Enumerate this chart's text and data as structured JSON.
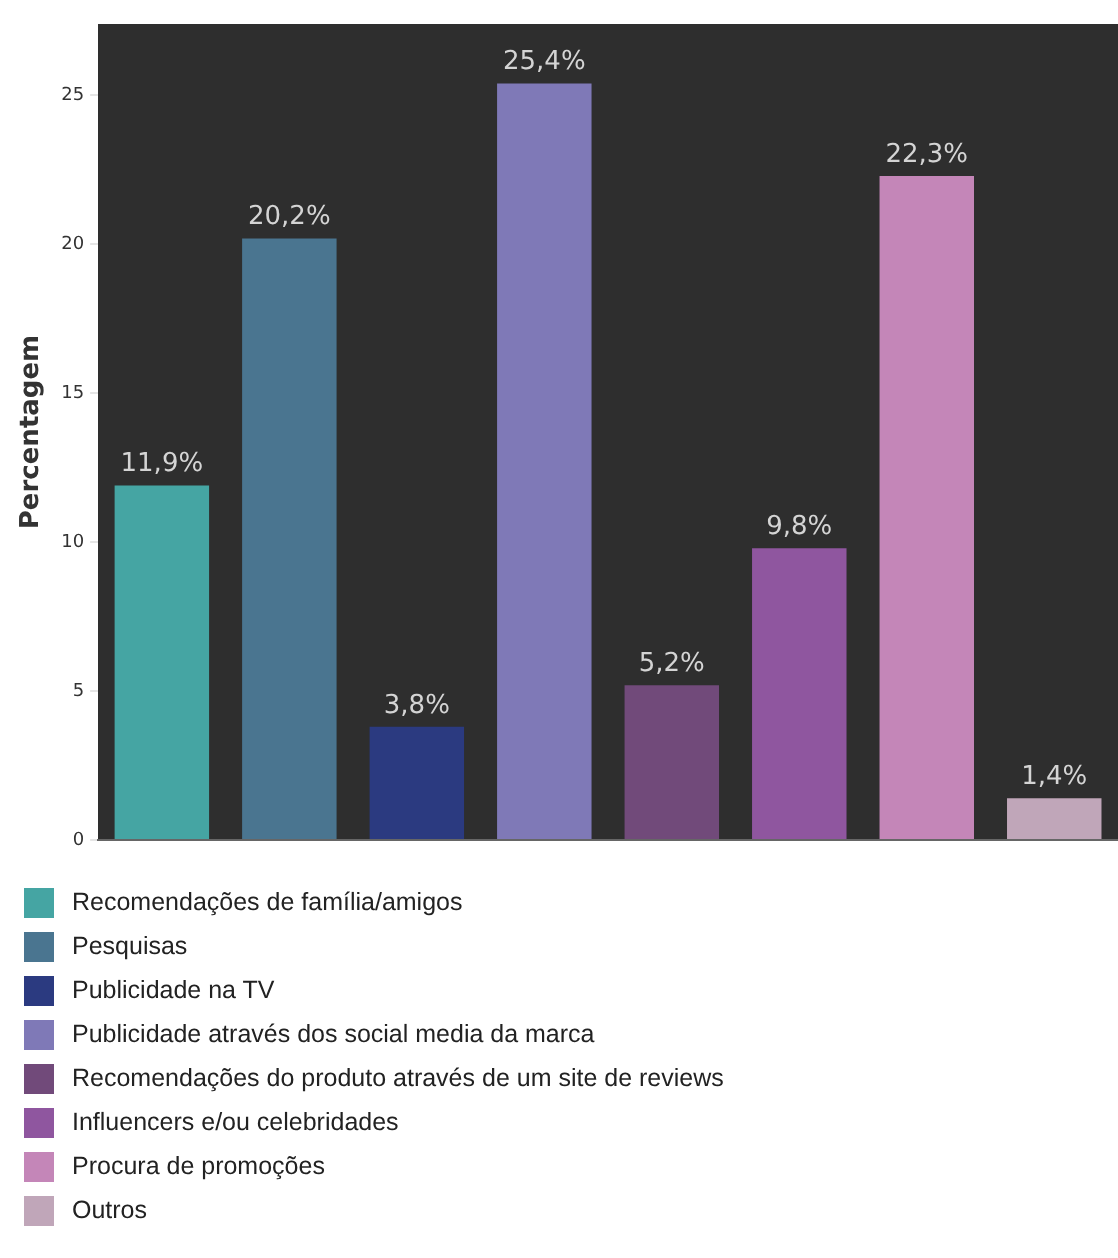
{
  "chart_data": {
    "type": "bar",
    "ylabel": "Percentagem",
    "categories": [
      null,
      null,
      null,
      null,
      null,
      null,
      null,
      null
    ],
    "series": [
      {
        "name": "Recomendações de família/amigos",
        "color": "#45a5a3",
        "values": [
          11.9,
          null,
          null,
          null,
          null,
          null,
          null,
          null
        ],
        "value_labels": [
          "11,9%",
          null,
          null,
          null,
          null,
          null,
          null,
          null
        ]
      },
      {
        "name": "Pesquisas",
        "color": "#4a7590",
        "values": [
          null,
          20.2,
          null,
          null,
          null,
          null,
          null,
          null
        ],
        "value_labels": [
          null,
          "20,2%",
          null,
          null,
          null,
          null,
          null,
          null
        ]
      },
      {
        "name": "Publicidade na TV",
        "color": "#2b3a80",
        "values": [
          null,
          null,
          3.8,
          null,
          null,
          null,
          null,
          null
        ],
        "value_labels": [
          null,
          null,
          "3,8%",
          null,
          null,
          null,
          null,
          null
        ]
      },
      {
        "name": "Publicidade através dos social media da marca",
        "color": "#7f79b7",
        "values": [
          null,
          null,
          null,
          25.4,
          null,
          null,
          null,
          null
        ],
        "value_labels": [
          null,
          null,
          null,
          "25,4%",
          null,
          null,
          null,
          null
        ]
      },
      {
        "name": "Recomendações do produto através de um site de reviews",
        "color": "#714a7a",
        "values": [
          null,
          null,
          null,
          null,
          5.2,
          null,
          null,
          null
        ],
        "value_labels": [
          null,
          null,
          null,
          null,
          "5,2%",
          null,
          null,
          null
        ]
      },
      {
        "name": "Influencers e/ou celebridades",
        "color": "#8f569f",
        "values": [
          null,
          null,
          null,
          null,
          null,
          9.8,
          null,
          null
        ],
        "value_labels": [
          null,
          null,
          null,
          null,
          null,
          "9,8%",
          null,
          null
        ]
      },
      {
        "name": "Procura de promoções",
        "color": "#c486b8",
        "values": [
          null,
          null,
          null,
          null,
          null,
          null,
          22.3,
          null
        ],
        "value_labels": [
          null,
          null,
          null,
          null,
          null,
          null,
          "22,3%",
          null
        ]
      },
      {
        "name": "Outros",
        "color": "#c0a6b9",
        "values": [
          null,
          null,
          null,
          null,
          null,
          null,
          null,
          1.4
        ],
        "value_labels": [
          null,
          null,
          null,
          null,
          null,
          null,
          null,
          "1,4%"
        ]
      }
    ],
    "ylim": [
      0,
      27.4
    ],
    "yticks": [
      0,
      5,
      10,
      15,
      20,
      25
    ],
    "grid": false,
    "legend": "bottom",
    "tick_labels": "y"
  }
}
